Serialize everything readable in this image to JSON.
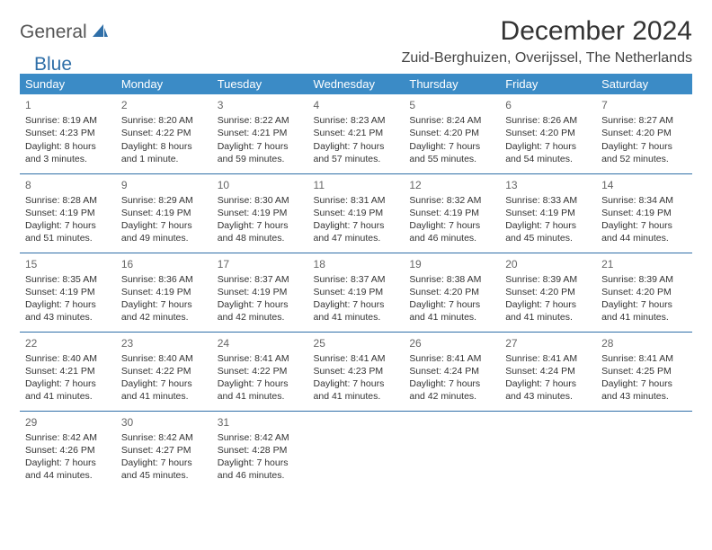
{
  "logo": {
    "word1": "General",
    "word2": "Blue"
  },
  "title": "December 2024",
  "location": "Zuid-Berghuizen, Overijssel, The Netherlands",
  "header_bg": "#3b8bc6",
  "header_text": "#ffffff",
  "border_color": "#2f6fa8",
  "daynames": [
    "Sunday",
    "Monday",
    "Tuesday",
    "Wednesday",
    "Thursday",
    "Friday",
    "Saturday"
  ],
  "weeks": [
    [
      {
        "n": "1",
        "sr": "Sunrise: 8:19 AM",
        "ss": "Sunset: 4:23 PM",
        "dl": "Daylight: 8 hours and 3 minutes."
      },
      {
        "n": "2",
        "sr": "Sunrise: 8:20 AM",
        "ss": "Sunset: 4:22 PM",
        "dl": "Daylight: 8 hours and 1 minute."
      },
      {
        "n": "3",
        "sr": "Sunrise: 8:22 AM",
        "ss": "Sunset: 4:21 PM",
        "dl": "Daylight: 7 hours and 59 minutes."
      },
      {
        "n": "4",
        "sr": "Sunrise: 8:23 AM",
        "ss": "Sunset: 4:21 PM",
        "dl": "Daylight: 7 hours and 57 minutes."
      },
      {
        "n": "5",
        "sr": "Sunrise: 8:24 AM",
        "ss": "Sunset: 4:20 PM",
        "dl": "Daylight: 7 hours and 55 minutes."
      },
      {
        "n": "6",
        "sr": "Sunrise: 8:26 AM",
        "ss": "Sunset: 4:20 PM",
        "dl": "Daylight: 7 hours and 54 minutes."
      },
      {
        "n": "7",
        "sr": "Sunrise: 8:27 AM",
        "ss": "Sunset: 4:20 PM",
        "dl": "Daylight: 7 hours and 52 minutes."
      }
    ],
    [
      {
        "n": "8",
        "sr": "Sunrise: 8:28 AM",
        "ss": "Sunset: 4:19 PM",
        "dl": "Daylight: 7 hours and 51 minutes."
      },
      {
        "n": "9",
        "sr": "Sunrise: 8:29 AM",
        "ss": "Sunset: 4:19 PM",
        "dl": "Daylight: 7 hours and 49 minutes."
      },
      {
        "n": "10",
        "sr": "Sunrise: 8:30 AM",
        "ss": "Sunset: 4:19 PM",
        "dl": "Daylight: 7 hours and 48 minutes."
      },
      {
        "n": "11",
        "sr": "Sunrise: 8:31 AM",
        "ss": "Sunset: 4:19 PM",
        "dl": "Daylight: 7 hours and 47 minutes."
      },
      {
        "n": "12",
        "sr": "Sunrise: 8:32 AM",
        "ss": "Sunset: 4:19 PM",
        "dl": "Daylight: 7 hours and 46 minutes."
      },
      {
        "n": "13",
        "sr": "Sunrise: 8:33 AM",
        "ss": "Sunset: 4:19 PM",
        "dl": "Daylight: 7 hours and 45 minutes."
      },
      {
        "n": "14",
        "sr": "Sunrise: 8:34 AM",
        "ss": "Sunset: 4:19 PM",
        "dl": "Daylight: 7 hours and 44 minutes."
      }
    ],
    [
      {
        "n": "15",
        "sr": "Sunrise: 8:35 AM",
        "ss": "Sunset: 4:19 PM",
        "dl": "Daylight: 7 hours and 43 minutes."
      },
      {
        "n": "16",
        "sr": "Sunrise: 8:36 AM",
        "ss": "Sunset: 4:19 PM",
        "dl": "Daylight: 7 hours and 42 minutes."
      },
      {
        "n": "17",
        "sr": "Sunrise: 8:37 AM",
        "ss": "Sunset: 4:19 PM",
        "dl": "Daylight: 7 hours and 42 minutes."
      },
      {
        "n": "18",
        "sr": "Sunrise: 8:37 AM",
        "ss": "Sunset: 4:19 PM",
        "dl": "Daylight: 7 hours and 41 minutes."
      },
      {
        "n": "19",
        "sr": "Sunrise: 8:38 AM",
        "ss": "Sunset: 4:20 PM",
        "dl": "Daylight: 7 hours and 41 minutes."
      },
      {
        "n": "20",
        "sr": "Sunrise: 8:39 AM",
        "ss": "Sunset: 4:20 PM",
        "dl": "Daylight: 7 hours and 41 minutes."
      },
      {
        "n": "21",
        "sr": "Sunrise: 8:39 AM",
        "ss": "Sunset: 4:20 PM",
        "dl": "Daylight: 7 hours and 41 minutes."
      }
    ],
    [
      {
        "n": "22",
        "sr": "Sunrise: 8:40 AM",
        "ss": "Sunset: 4:21 PM",
        "dl": "Daylight: 7 hours and 41 minutes."
      },
      {
        "n": "23",
        "sr": "Sunrise: 8:40 AM",
        "ss": "Sunset: 4:22 PM",
        "dl": "Daylight: 7 hours and 41 minutes."
      },
      {
        "n": "24",
        "sr": "Sunrise: 8:41 AM",
        "ss": "Sunset: 4:22 PM",
        "dl": "Daylight: 7 hours and 41 minutes."
      },
      {
        "n": "25",
        "sr": "Sunrise: 8:41 AM",
        "ss": "Sunset: 4:23 PM",
        "dl": "Daylight: 7 hours and 41 minutes."
      },
      {
        "n": "26",
        "sr": "Sunrise: 8:41 AM",
        "ss": "Sunset: 4:24 PM",
        "dl": "Daylight: 7 hours and 42 minutes."
      },
      {
        "n": "27",
        "sr": "Sunrise: 8:41 AM",
        "ss": "Sunset: 4:24 PM",
        "dl": "Daylight: 7 hours and 43 minutes."
      },
      {
        "n": "28",
        "sr": "Sunrise: 8:41 AM",
        "ss": "Sunset: 4:25 PM",
        "dl": "Daylight: 7 hours and 43 minutes."
      }
    ],
    [
      {
        "n": "29",
        "sr": "Sunrise: 8:42 AM",
        "ss": "Sunset: 4:26 PM",
        "dl": "Daylight: 7 hours and 44 minutes."
      },
      {
        "n": "30",
        "sr": "Sunrise: 8:42 AM",
        "ss": "Sunset: 4:27 PM",
        "dl": "Daylight: 7 hours and 45 minutes."
      },
      {
        "n": "31",
        "sr": "Sunrise: 8:42 AM",
        "ss": "Sunset: 4:28 PM",
        "dl": "Daylight: 7 hours and 46 minutes."
      },
      null,
      null,
      null,
      null
    ]
  ]
}
